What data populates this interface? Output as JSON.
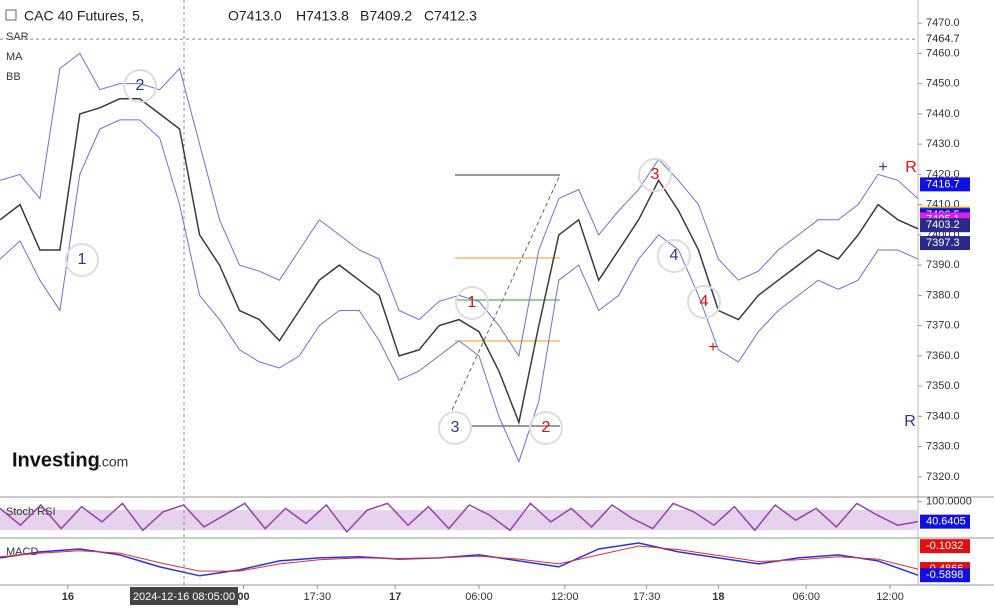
{
  "header": {
    "symbol": "CAC 40 Futures, 5,",
    "open": "O7413.0",
    "high": "H7413.8",
    "bid": "B7409.2",
    "close": "C7412.3"
  },
  "indicators": [
    "SAR",
    "MA",
    "BB"
  ],
  "logo": {
    "brand": "Investing",
    "suffix": ".com"
  },
  "crosshair_time": "2024-12-16 08:05:00",
  "chart_data": [
    {
      "type": "line",
      "xlim": [
        0,
        46
      ],
      "ylim": [
        7314,
        7476
      ],
      "yticks": [
        {
          "value": 7470,
          "label": "7470.0"
        },
        {
          "value": 7460,
          "label": "7460.0"
        },
        {
          "value": 7450,
          "label": "7450.0"
        },
        {
          "value": 7440,
          "label": "7440.0"
        },
        {
          "value": 7430,
          "label": "7430.0"
        },
        {
          "value": 7420,
          "label": "7420.0"
        },
        {
          "value": 7410,
          "label": "7410.0"
        },
        {
          "value": 7400,
          "label": "7400.0"
        },
        {
          "value": 7390,
          "label": "7390.0"
        },
        {
          "value": 7380,
          "label": "7380.0"
        },
        {
          "value": 7370,
          "label": "7370.0"
        },
        {
          "value": 7360,
          "label": "7360.0"
        },
        {
          "value": 7350,
          "label": "7350.0"
        },
        {
          "value": 7340,
          "label": "7340.0"
        },
        {
          "value": 7330,
          "label": "7330.0"
        },
        {
          "value": 7320,
          "label": "7320.0"
        }
      ],
      "xticks": [
        {
          "value": 3.4,
          "label": "16"
        },
        {
          "value": 12.2,
          "label": "00"
        },
        {
          "value": 15.9,
          "label": "17:30"
        },
        {
          "value": 19.8,
          "label": "17"
        },
        {
          "value": 24,
          "label": "06:00"
        },
        {
          "value": 28.3,
          "label": "12:00"
        },
        {
          "value": 32.4,
          "label": "17:30"
        },
        {
          "value": 36,
          "label": "18"
        },
        {
          "value": 40.4,
          "label": "06:00"
        },
        {
          "value": 44.6,
          "label": "12:00"
        }
      ],
      "series": [
        {
          "color": "#3a3a3a",
          "values": [
            7405,
            7410,
            7395,
            7395,
            7440,
            7442,
            7445,
            7445,
            7440,
            7435,
            7400,
            7390,
            7375,
            7372,
            7365,
            7375,
            7385,
            7390,
            7385,
            7380,
            7360,
            7362,
            7370,
            7372,
            7368,
            7355,
            7338,
            7370,
            7400,
            7405,
            7385,
            7395,
            7405,
            7418,
            7408,
            7395,
            7375,
            7372,
            7380,
            7385,
            7390,
            7395,
            7392,
            7400,
            7410,
            7405,
            7402
          ]
        },
        {
          "color": "#6f6fe0",
          "values": [
            7418,
            7420,
            7412,
            7455,
            7460,
            7448,
            7450,
            7450,
            7448,
            7455,
            7430,
            7405,
            7390,
            7388,
            7385,
            7395,
            7405,
            7400,
            7395,
            7392,
            7375,
            7372,
            7378,
            7380,
            7378,
            7370,
            7360,
            7395,
            7412,
            7415,
            7400,
            7408,
            7415,
            7425,
            7418,
            7410,
            7392,
            7385,
            7388,
            7395,
            7400,
            7405,
            7405,
            7410,
            7420,
            7418,
            7412
          ]
        },
        {
          "color": "#6f6fe0",
          "values": [
            7392,
            7398,
            7385,
            7375,
            7420,
            7435,
            7438,
            7438,
            7432,
            7410,
            7380,
            7372,
            7362,
            7358,
            7356,
            7360,
            7370,
            7375,
            7375,
            7365,
            7352,
            7355,
            7360,
            7365,
            7360,
            7340,
            7325,
            7345,
            7385,
            7390,
            7375,
            7380,
            7392,
            7400,
            7395,
            7380,
            7362,
            7358,
            7368,
            7375,
            7380,
            7385,
            7382,
            7385,
            7395,
            7395,
            7392
          ]
        }
      ],
      "price_labels": [
        {
          "value": 7464.7,
          "color": "#ffffff"
        },
        {
          "value": 7416.7,
          "color": "#1010e0"
        },
        {
          "value": 7407,
          "label": "7407.0",
          "color": "#f29a1c"
        },
        {
          "value": 7406.5,
          "color": "#1010e0"
        },
        {
          "value": 7405.1,
          "color": "#e020e0"
        },
        {
          "value": 7403.2,
          "color": "#2a2a8a"
        },
        {
          "value": 7397.3,
          "color": "#2a2a8a"
        }
      ],
      "annotations": [
        {
          "text": "1",
          "color": "#2a3a8a"
        },
        {
          "text": "2",
          "color": "#2a3a8a"
        },
        {
          "text": "1",
          "color": "#e01010"
        },
        {
          "text": "2",
          "color": "#e01010"
        },
        {
          "text": "3",
          "color": "#2a3a8a"
        },
        {
          "text": "3",
          "color": "#e01010"
        },
        {
          "text": "4",
          "color": "#2a3a8a"
        },
        {
          "text": "4",
          "color": "#e01010"
        },
        {
          "text": "+",
          "color": "#e01010"
        },
        {
          "text": "+",
          "color": "#2a3a8a"
        },
        {
          "text": "R",
          "color": "#e01010"
        },
        {
          "text": "R",
          "color": "#2a3a8a"
        }
      ]
    },
    {
      "type": "line",
      "title": "Stoch RSI",
      "xlim": [
        0,
        45
      ],
      "ylim": [
        -5,
        105
      ],
      "yticks": [
        {
          "value": 100,
          "label": "100.0000"
        }
      ],
      "series": [
        {
          "color": "#9a3fb0",
          "values": [
            80,
            30,
            90,
            20,
            85,
            40,
            95,
            15,
            70,
            90,
            25,
            60,
            95,
            20,
            80,
            35,
            90,
            10,
            75,
            95,
            30,
            85,
            20,
            90,
            60,
            15,
            95,
            40,
            80,
            25,
            90,
            50,
            20,
            95,
            70,
            30,
            85,
            15,
            90,
            45,
            80,
            25,
            95,
            60,
            30,
            40.6405
          ]
        }
      ],
      "price_labels": [
        {
          "value": 40.6405,
          "color": "#1010e0"
        }
      ]
    },
    {
      "type": "line",
      "title": "MACD",
      "xlim": [
        0,
        23
      ],
      "ylim": [
        -0.72,
        0
      ],
      "series": [
        {
          "color": "#3030e0",
          "values": [
            -0.3,
            -0.2,
            -0.15,
            -0.25,
            -0.45,
            -0.6,
            -0.5,
            -0.35,
            -0.3,
            -0.28,
            -0.32,
            -0.3,
            -0.25,
            -0.35,
            -0.45,
            -0.15,
            -0.05,
            -0.2,
            -0.3,
            -0.4,
            -0.3,
            -0.25,
            -0.35,
            -0.5898
          ]
        },
        {
          "color": "#e03030",
          "values": [
            -0.28,
            -0.22,
            -0.18,
            -0.22,
            -0.38,
            -0.52,
            -0.52,
            -0.4,
            -0.33,
            -0.3,
            -0.31,
            -0.3,
            -0.27,
            -0.32,
            -0.4,
            -0.25,
            -0.1,
            -0.16,
            -0.26,
            -0.36,
            -0.33,
            -0.28,
            -0.32,
            -0.4866
          ]
        }
      ],
      "price_labels": [
        {
          "value": -0.1032,
          "color": "#e01010"
        },
        {
          "value": -0.4866,
          "color": "#e01010"
        },
        {
          "value": -0.5898,
          "color": "#1010e0"
        }
      ]
    }
  ]
}
